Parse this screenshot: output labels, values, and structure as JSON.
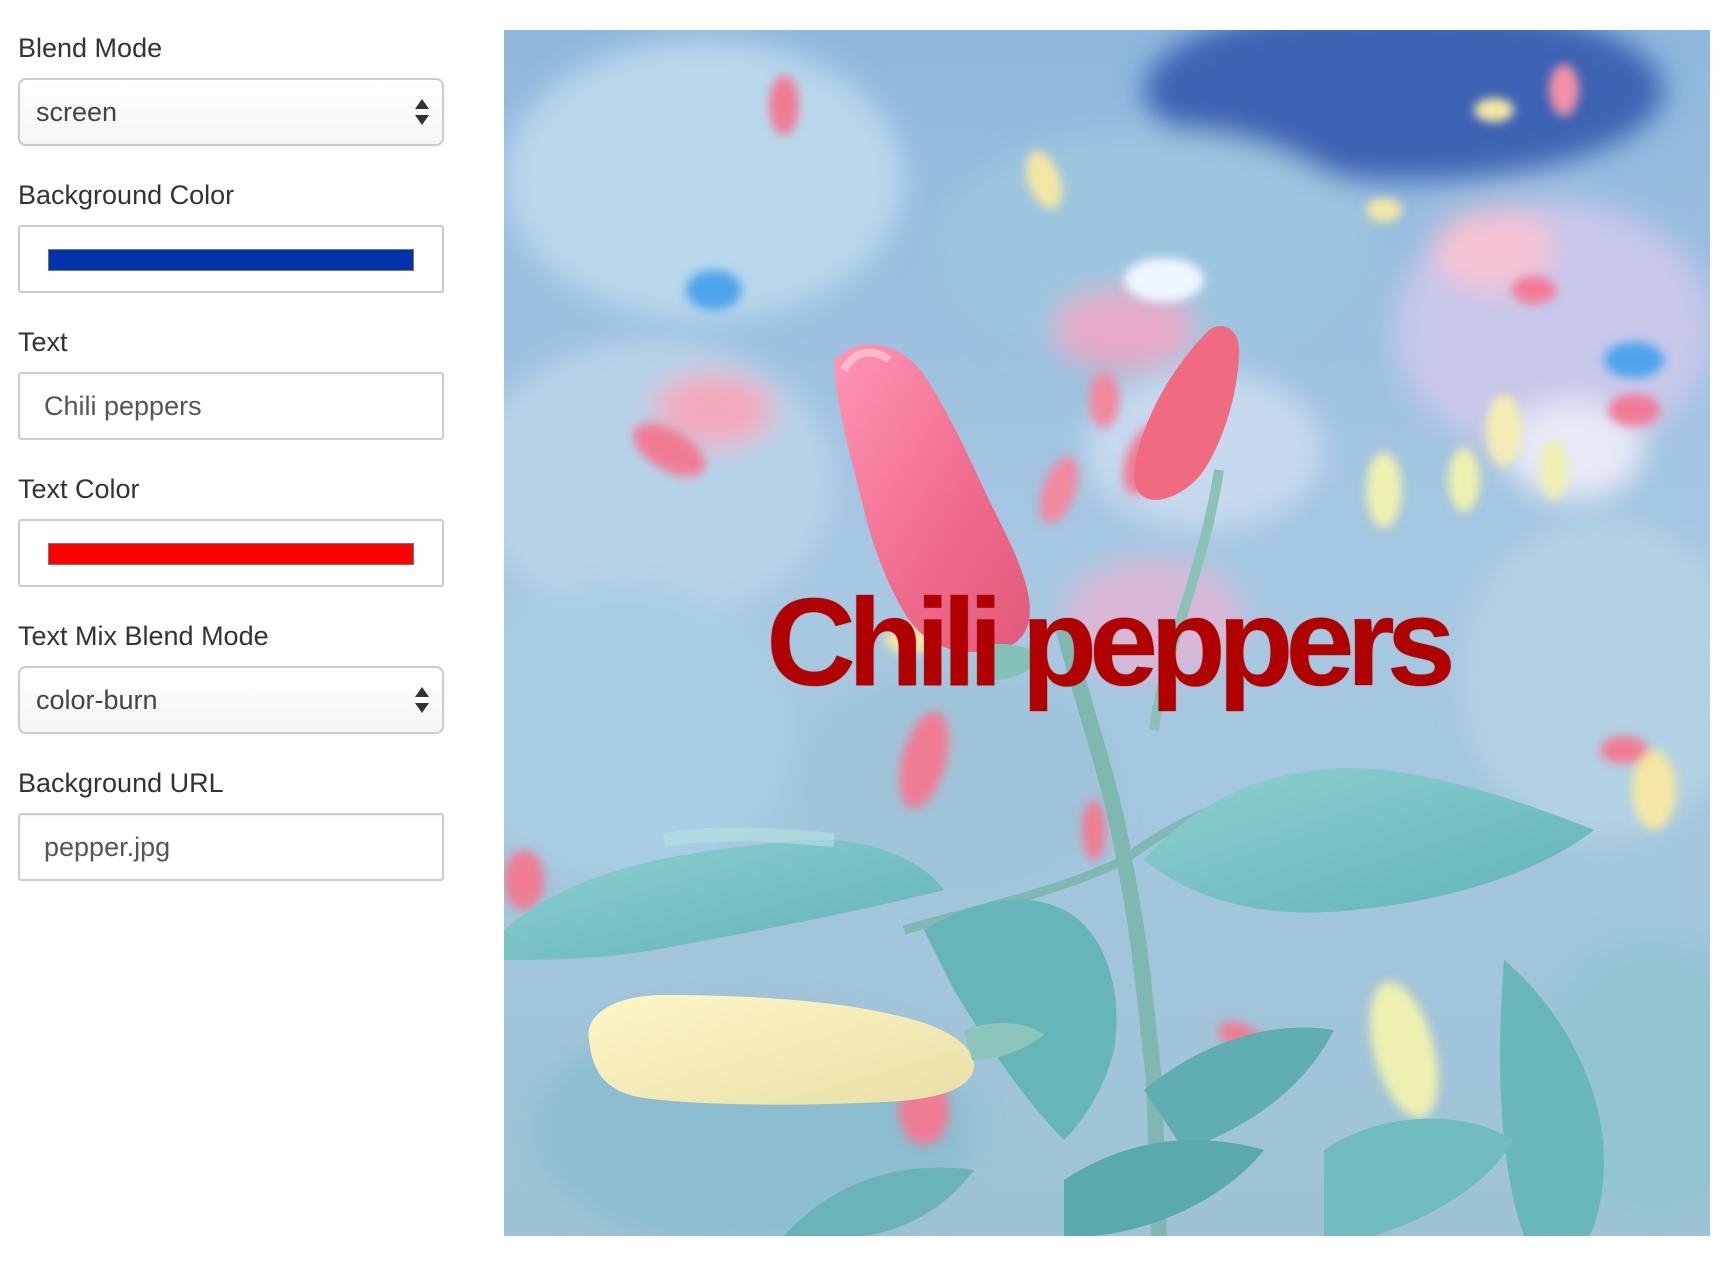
{
  "controls": {
    "blend_mode": {
      "label": "Blend Mode",
      "value": "screen"
    },
    "background_color": {
      "label": "Background Color",
      "value": "#0033aa"
    },
    "text": {
      "label": "Text",
      "value": "Chili peppers"
    },
    "text_color": {
      "label": "Text Color",
      "value": "#ff0000"
    },
    "text_mix_blend_mode": {
      "label": "Text Mix Blend Mode",
      "value": "color-burn"
    },
    "background_url": {
      "label": "Background URL",
      "value": "pepper.jpg"
    }
  },
  "preview": {
    "overlay_text": "Chili peppers"
  }
}
